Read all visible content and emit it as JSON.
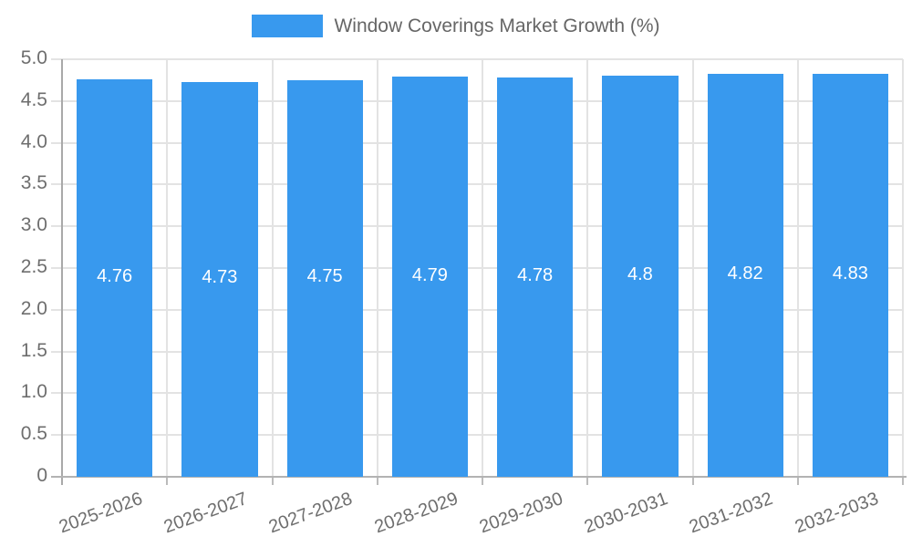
{
  "colors": {
    "bar": "#3899ee",
    "grid": "#e3e3e3",
    "axis": "#a9a9a9",
    "tick_mark": "#bbbbbb",
    "tick_text": "#6e6e6e",
    "legend_text": "#666666",
    "value_text": "#ffffff",
    "background": "#ffffff"
  },
  "legend": {
    "position": "top",
    "label": "Window Coverings Market Growth (%)"
  },
  "chart_data": {
    "type": "bar",
    "title": "Window Coverings Market Growth (%)",
    "categories": [
      "2025-2026",
      "2026-2027",
      "2027-2028",
      "2028-2029",
      "2029-2030",
      "2030-2031",
      "2031-2032",
      "2032-2033"
    ],
    "values": [
      4.76,
      4.73,
      4.75,
      4.79,
      4.78,
      4.8,
      4.82,
      4.83
    ],
    "value_labels": [
      "4.76",
      "4.73",
      "4.75",
      "4.79",
      "4.78",
      "4.8",
      "4.82",
      "4.83"
    ],
    "xlabel": "",
    "ylabel": "",
    "ylim": [
      0,
      5
    ],
    "y_tick_values": [
      0,
      0.5,
      1,
      1.5,
      2,
      2.5,
      3,
      3.5,
      4,
      4.5,
      5
    ],
    "y_tick_labels": [
      "0",
      "0.5",
      "1.0",
      "1.5",
      "2.0",
      "2.5",
      "3.0",
      "3.5",
      "4.0",
      "4.5",
      "5.0"
    ],
    "grid": true,
    "legend_position": "top",
    "x_tick_rotation_deg": -20
  }
}
